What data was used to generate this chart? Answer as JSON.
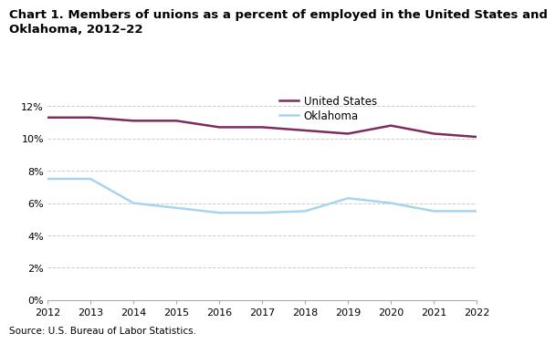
{
  "title_line1": "Chart 1. Members of unions as a percent of employed in the United States and",
  "title_line2": "Oklahoma, 2012–22",
  "source": "Source: U.S. Bureau of Labor Statistics.",
  "years": [
    2012,
    2013,
    2014,
    2015,
    2016,
    2017,
    2018,
    2019,
    2020,
    2021,
    2022
  ],
  "us_values": [
    11.3,
    11.3,
    11.1,
    11.1,
    10.7,
    10.7,
    10.5,
    10.3,
    10.8,
    10.3,
    10.1
  ],
  "ok_values": [
    7.5,
    7.5,
    6.0,
    5.7,
    5.4,
    5.4,
    5.5,
    6.3,
    6.0,
    5.5,
    5.5
  ],
  "us_color": "#7B2D5E",
  "ok_color": "#A8D4F0",
  "ylim": [
    0,
    13
  ],
  "yticks": [
    0,
    2,
    4,
    6,
    8,
    10,
    12
  ],
  "ytick_labels": [
    "0%",
    "2%",
    "4%",
    "6%",
    "8%",
    "10%",
    "12%"
  ],
  "title_fontsize": 9.5,
  "tick_fontsize": 8,
  "source_fontsize": 7.5,
  "legend_fontsize": 8.5,
  "legend_labels": [
    "United States",
    "Oklahoma"
  ],
  "line_width": 1.8,
  "background_color": "#ffffff",
  "grid_color": "#cccccc",
  "spine_color": "#aaaaaa"
}
